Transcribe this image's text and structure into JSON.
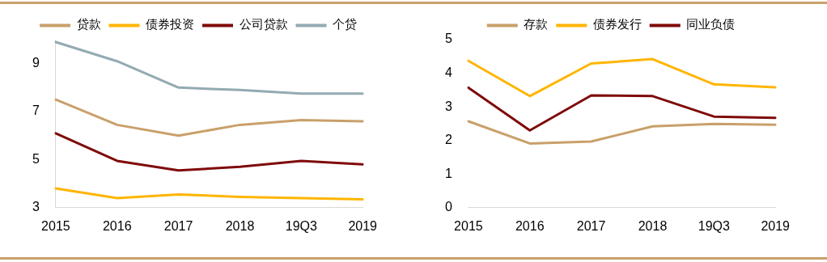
{
  "chart_data": [
    {
      "type": "line",
      "categories": [
        "2015",
        "2016",
        "2017",
        "2018",
        "19Q3",
        "2019"
      ],
      "series": [
        {
          "name": "贷款",
          "color": "#c9a06a",
          "values": [
            7.5,
            6.45,
            6.0,
            6.45,
            6.65,
            6.6
          ]
        },
        {
          "name": "债券投资",
          "color": "#ffb500",
          "values": [
            3.8,
            3.4,
            3.55,
            3.45,
            3.4,
            3.35
          ]
        },
        {
          "name": "公司贷款",
          "color": "#7f0a0a",
          "values": [
            6.1,
            4.95,
            4.55,
            4.7,
            4.95,
            4.8
          ]
        },
        {
          "name": "个贷",
          "color": "#93aab2",
          "values": [
            9.9,
            9.1,
            8.0,
            7.9,
            7.75,
            7.75
          ]
        }
      ],
      "ylim": [
        3,
        10
      ],
      "yticks": [
        3,
        5,
        7,
        9
      ],
      "grid": false,
      "legend": "top",
      "marker": "none",
      "line_style": "solid"
    },
    {
      "type": "line",
      "categories": [
        "2015",
        "2016",
        "2017",
        "2018",
        "19Q3",
        "2019"
      ],
      "series": [
        {
          "name": "存款",
          "color": "#c9a06a",
          "values": [
            2.57,
            1.91,
            1.97,
            2.42,
            2.49,
            2.47
          ]
        },
        {
          "name": "债券发行",
          "color": "#ffb500",
          "values": [
            4.37,
            3.32,
            4.29,
            4.42,
            3.67,
            3.58
          ]
        },
        {
          "name": "同业负债",
          "color": "#7f0a0a",
          "values": [
            3.57,
            2.3,
            3.34,
            3.32,
            2.71,
            2.67
          ]
        }
      ],
      "ylim": [
        0,
        5
      ],
      "yticks": [
        0,
        1,
        2,
        3,
        4,
        5
      ],
      "grid": false,
      "legend": "top",
      "marker": "none",
      "line_style": "solid"
    }
  ]
}
